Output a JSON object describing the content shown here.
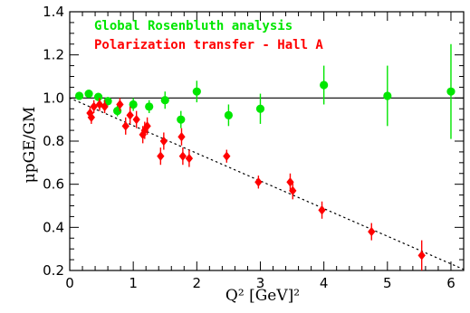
{
  "chart_data": {
    "type": "scatter",
    "xlabel": "Q² [GeV]²",
    "ylabel": "μpGE/GM",
    "xlim": [
      0,
      6.2
    ],
    "ylim": [
      0.2,
      1.4
    ],
    "xticks": [
      0,
      1,
      2,
      3,
      4,
      5,
      6
    ],
    "yticks": [
      0.2,
      0.4,
      0.6,
      0.8,
      1.0,
      1.2,
      1.4
    ],
    "xtick_labels": [
      "0",
      "1",
      "2",
      "3",
      "4",
      "5",
      "6"
    ],
    "ytick_labels": [
      "0.2",
      "0.4",
      "0.6",
      "0.8",
      "1.0",
      "1.2",
      "1.4"
    ],
    "legend_position": "top-left",
    "reference_line": {
      "y": 1.0,
      "color": "#000000"
    },
    "fit_line": {
      "style": "dotted",
      "x": [
        0.0,
        6.2
      ],
      "y": [
        1.0,
        0.205
      ]
    },
    "series": [
      {
        "name": "Global Rosenbluth analysis",
        "color": "#00e600",
        "marker": "circle",
        "points": [
          {
            "x": 0.15,
            "y": 1.01,
            "err": 0.015
          },
          {
            "x": 0.3,
            "y": 1.02,
            "err": 0.015
          },
          {
            "x": 0.45,
            "y": 1.005,
            "err": 0.015
          },
          {
            "x": 0.6,
            "y": 0.985,
            "err": 0.02
          },
          {
            "x": 0.75,
            "y": 0.94,
            "err": 0.025
          },
          {
            "x": 1.0,
            "y": 0.97,
            "err": 0.03
          },
          {
            "x": 1.25,
            "y": 0.96,
            "err": 0.03
          },
          {
            "x": 1.5,
            "y": 0.99,
            "err": 0.04
          },
          {
            "x": 1.75,
            "y": 0.9,
            "err": 0.04
          },
          {
            "x": 2.0,
            "y": 1.03,
            "err": 0.05
          },
          {
            "x": 2.5,
            "y": 0.92,
            "err": 0.05
          },
          {
            "x": 3.0,
            "y": 0.95,
            "err": 0.07
          },
          {
            "x": 4.0,
            "y": 1.06,
            "err": 0.09
          },
          {
            "x": 5.0,
            "y": 1.01,
            "err": 0.14
          },
          {
            "x": 6.0,
            "y": 1.03,
            "err": 0.22
          }
        ]
      },
      {
        "name": "Polarization transfer - Hall A",
        "color": "#ff0000",
        "marker": "diamond",
        "points": [
          {
            "x": 0.32,
            "y": 0.93,
            "err": 0.03
          },
          {
            "x": 0.34,
            "y": 0.91,
            "err": 0.03
          },
          {
            "x": 0.38,
            "y": 0.96,
            "err": 0.03
          },
          {
            "x": 0.47,
            "y": 0.97,
            "err": 0.03
          },
          {
            "x": 0.55,
            "y": 0.96,
            "err": 0.03
          },
          {
            "x": 0.79,
            "y": 0.97,
            "err": 0.03
          },
          {
            "x": 0.88,
            "y": 0.87,
            "err": 0.04
          },
          {
            "x": 0.95,
            "y": 0.92,
            "err": 0.04
          },
          {
            "x": 1.05,
            "y": 0.9,
            "err": 0.04
          },
          {
            "x": 1.15,
            "y": 0.83,
            "err": 0.04
          },
          {
            "x": 1.18,
            "y": 0.85,
            "err": 0.04
          },
          {
            "x": 1.22,
            "y": 0.87,
            "err": 0.04
          },
          {
            "x": 1.43,
            "y": 0.73,
            "err": 0.04
          },
          {
            "x": 1.48,
            "y": 0.8,
            "err": 0.04
          },
          {
            "x": 1.76,
            "y": 0.82,
            "err": 0.04
          },
          {
            "x": 1.78,
            "y": 0.73,
            "err": 0.04
          },
          {
            "x": 1.88,
            "y": 0.72,
            "err": 0.04
          },
          {
            "x": 2.47,
            "y": 0.73,
            "err": 0.03
          },
          {
            "x": 2.97,
            "y": 0.61,
            "err": 0.03
          },
          {
            "x": 3.47,
            "y": 0.61,
            "err": 0.04
          },
          {
            "x": 3.51,
            "y": 0.57,
            "err": 0.04
          },
          {
            "x": 3.97,
            "y": 0.48,
            "err": 0.04
          },
          {
            "x": 4.75,
            "y": 0.38,
            "err": 0.04
          },
          {
            "x": 5.54,
            "y": 0.27,
            "err": 0.07
          }
        ]
      }
    ]
  }
}
